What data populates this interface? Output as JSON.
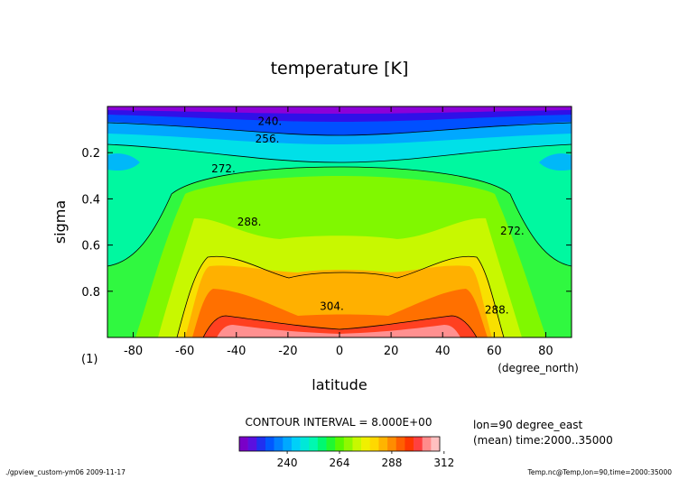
{
  "chart_data": {
    "type": "contour",
    "title": "temperature [K]",
    "xlabel": "latitude",
    "ylabel": "sigma",
    "x_units": "(degree_north)",
    "y_units": "(1)",
    "xlim": [
      -90,
      90
    ],
    "ylim": [
      1.0,
      0.0
    ],
    "x_ticks": [
      -80,
      -60,
      -40,
      -20,
      0,
      20,
      40,
      60,
      80
    ],
    "y_ticks": [
      0.2,
      0.4,
      0.6,
      0.8
    ],
    "y_tick_labels": [
      "0.2",
      "0.4",
      "0.6",
      "0.8"
    ],
    "contour_labels": [
      {
        "text": "240.",
        "lat": -27,
        "sigma": 0.065
      },
      {
        "text": "256.",
        "lat": -28,
        "sigma": 0.14
      },
      {
        "text": "272.",
        "lat": -45,
        "sigma": 0.27
      },
      {
        "text": "288.",
        "lat": -35,
        "sigma": 0.5
      },
      {
        "text": "272.",
        "lat": 67,
        "sigma": 0.54
      },
      {
        "text": "304.",
        "lat": -3,
        "sigma": 0.865
      },
      {
        "text": "288.",
        "lat": 61,
        "sigma": 0.88
      }
    ],
    "contour_interval_text": "CONTOUR INTERVAL = 8.000E+00",
    "colorbar": {
      "tick_labels": [
        "240",
        "264",
        "288",
        "312"
      ],
      "tick_values": [
        240,
        264,
        288,
        312
      ],
      "levels": [
        216,
        220,
        224,
        228,
        232,
        236,
        240,
        244,
        248,
        252,
        256,
        260,
        264,
        268,
        272,
        276,
        280,
        284,
        288,
        292,
        296,
        300,
        304,
        308,
        312,
        316
      ],
      "colors": [
        "#7a00c8",
        "#5a10e0",
        "#2030f0",
        "#0058ff",
        "#0080ff",
        "#00a8ff",
        "#00d0f8",
        "#00e8d8",
        "#00f8b0",
        "#00f870",
        "#20f830",
        "#58f800",
        "#90f800",
        "#c8f800",
        "#f0f000",
        "#ffd800",
        "#ffb400",
        "#ff8c00",
        "#ff6000",
        "#ff3800",
        "#ff4040",
        "#ff8c8c",
        "#ffc0c0"
      ]
    },
    "annotations": [
      "lon=90 degree_east",
      "(mean) time:2000..35000"
    ]
  },
  "footer": {
    "left": "./gpview_custom-ym06  2009-11-17",
    "right": "Temp.nc@Temp,lon=90,time=2000:35000"
  }
}
